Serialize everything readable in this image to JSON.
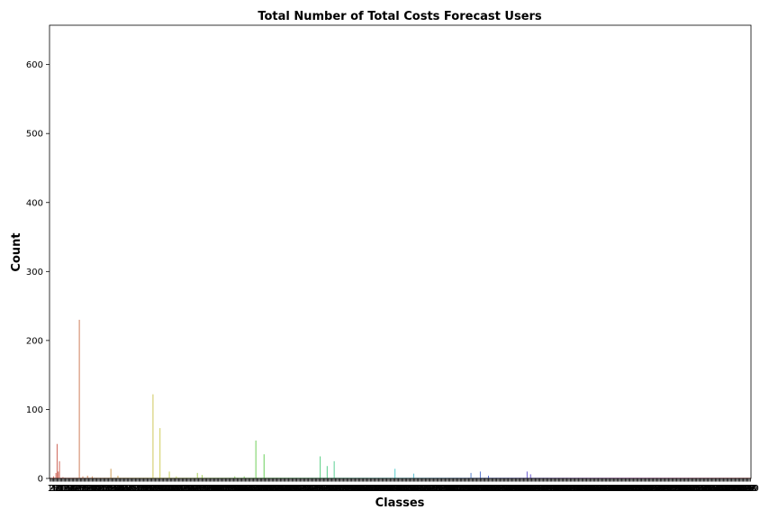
{
  "chart_data": {
    "type": "bar",
    "title": "Total  Number of Total Costs Forecast Users",
    "xlabel": "Classes",
    "ylabel": "Count",
    "ylim": [
      0,
      657
    ],
    "yticks": [
      0,
      100,
      200,
      300,
      400,
      500,
      600
    ],
    "n_categories": 600,
    "grid": false,
    "legend": "none",
    "palette": "hls",
    "baseline_value": 1,
    "notable_values": [
      {
        "index": 3,
        "value": 3
      },
      {
        "index": 5,
        "value": 8
      },
      {
        "index": 6,
        "value": 50
      },
      {
        "index": 7,
        "value": 10
      },
      {
        "index": 8,
        "value": 25
      },
      {
        "index": 11,
        "value": 2
      },
      {
        "index": 25,
        "value": 230
      },
      {
        "index": 28,
        "value": 3
      },
      {
        "index": 32,
        "value": 4
      },
      {
        "index": 36,
        "value": 3
      },
      {
        "index": 52,
        "value": 14
      },
      {
        "index": 58,
        "value": 4
      },
      {
        "index": 88,
        "value": 122
      },
      {
        "index": 94,
        "value": 73
      },
      {
        "index": 102,
        "value": 10
      },
      {
        "index": 108,
        "value": 3
      },
      {
        "index": 126,
        "value": 8
      },
      {
        "index": 130,
        "value": 5
      },
      {
        "index": 158,
        "value": 3
      },
      {
        "index": 166,
        "value": 3
      },
      {
        "index": 176,
        "value": 55
      },
      {
        "index": 183,
        "value": 35
      },
      {
        "index": 231,
        "value": 32
      },
      {
        "index": 237,
        "value": 18
      },
      {
        "index": 243,
        "value": 25
      },
      {
        "index": 295,
        "value": 14
      },
      {
        "index": 311,
        "value": 7
      },
      {
        "index": 360,
        "value": 8
      },
      {
        "index": 368,
        "value": 10
      },
      {
        "index": 375,
        "value": 4
      },
      {
        "index": 408,
        "value": 10
      },
      {
        "index": 411,
        "value": 6
      }
    ]
  }
}
